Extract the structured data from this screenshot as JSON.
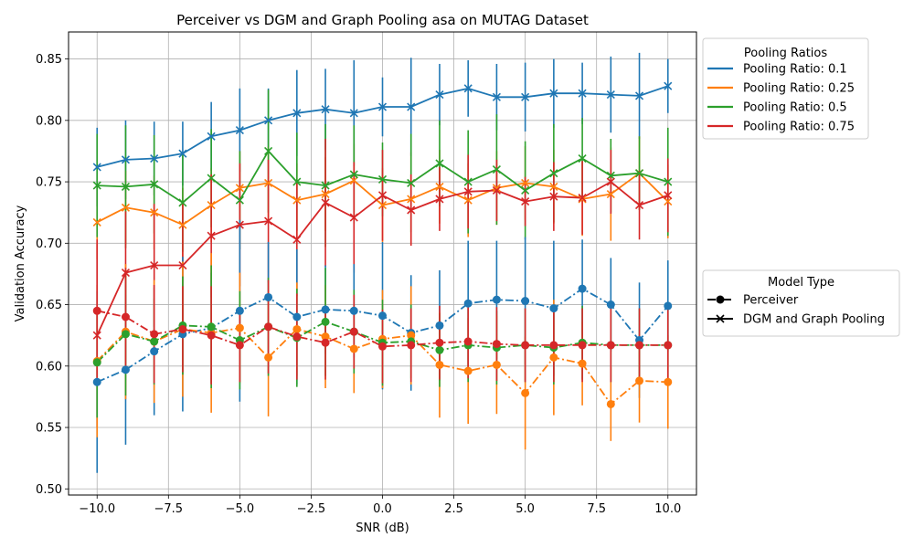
{
  "chart_data": {
    "type": "line",
    "title": "Perceiver vs DGM and Graph Pooling asa on MUTAG Dataset",
    "xlabel": "SNR (dB)",
    "ylabel": "Validation Accuracy",
    "xlim": [
      -11,
      11
    ],
    "ylim": [
      0.495,
      0.872
    ],
    "xticks": [
      -10.0,
      -7.5,
      -5.0,
      -2.5,
      0.0,
      2.5,
      5.0,
      7.5,
      10.0
    ],
    "xtick_labels": [
      "−10.0",
      "−7.5",
      "−5.0",
      "−2.5",
      "0.0",
      "2.5",
      "5.0",
      "7.5",
      "10.0"
    ],
    "yticks": [
      0.5,
      0.55,
      0.6,
      0.65,
      0.7,
      0.75,
      0.8,
      0.85
    ],
    "ytick_labels": [
      "0.50",
      "0.55",
      "0.60",
      "0.65",
      "0.70",
      "0.75",
      "0.80",
      "0.85"
    ],
    "grid": true,
    "x": [
      -10,
      -9,
      -8,
      -7,
      -6,
      -5,
      -4,
      -3,
      -2,
      -1,
      0,
      1,
      2,
      3,
      4,
      5,
      6,
      7,
      8,
      9,
      10
    ],
    "legend_pooling": {
      "title": "Pooling Ratios",
      "placement": "outside-upper-right",
      "entries": [
        "Pooling Ratio: 0.1",
        "Pooling Ratio: 0.25",
        "Pooling Ratio: 0.5",
        "Pooling Ratio: 0.75"
      ],
      "colors": [
        "#1f77b4",
        "#ff7f0e",
        "#2ca02c",
        "#d62728"
      ]
    },
    "legend_model": {
      "title": "Model Type",
      "placement": "outside-right",
      "entries": [
        "Perceiver",
        "DGM and Graph Pooling"
      ],
      "markers": [
        "circle",
        "x"
      ],
      "linestyles": [
        "dashdot",
        "solid"
      ]
    },
    "series": [
      {
        "name": "Pooling Ratio: 0.1",
        "model": "DGM and Graph Pooling",
        "color": "#1f77b4",
        "marker": "x",
        "linestyle": "solid",
        "values": [
          0.762,
          0.768,
          0.769,
          0.773,
          0.787,
          0.792,
          0.8,
          0.806,
          0.809,
          0.806,
          0.811,
          0.811,
          0.821,
          0.826,
          0.819,
          0.819,
          0.822,
          0.822,
          0.821,
          0.82,
          0.828
        ],
        "err": [
          0.032,
          0.032,
          0.03,
          0.026,
          0.028,
          0.034,
          0.026,
          0.035,
          0.033,
          0.043,
          0.024,
          0.04,
          0.025,
          0.023,
          0.027,
          0.028,
          0.028,
          0.025,
          0.031,
          0.035,
          0.022
        ]
      },
      {
        "name": "Pooling Ratio: 0.25",
        "model": "DGM and Graph Pooling",
        "color": "#ff7f0e",
        "marker": "x",
        "linestyle": "solid",
        "values": [
          0.717,
          0.729,
          0.725,
          0.715,
          0.731,
          0.745,
          0.749,
          0.735,
          0.74,
          0.751,
          0.731,
          0.736,
          0.746,
          0.735,
          0.745,
          0.749,
          0.746,
          0.736,
          0.74,
          0.757,
          0.734
        ],
        "err": [
          0.03,
          0.03,
          0.03,
          0.03,
          0.03,
          0.03,
          0.03,
          0.03,
          0.03,
          0.03,
          0.03,
          0.038,
          0.03,
          0.03,
          0.03,
          0.03,
          0.03,
          0.03,
          0.038,
          0.03,
          0.03
        ]
      },
      {
        "name": "Pooling Ratio: 0.5",
        "model": "DGM and Graph Pooling",
        "color": "#2ca02c",
        "marker": "x",
        "linestyle": "solid",
        "values": [
          0.747,
          0.746,
          0.748,
          0.733,
          0.753,
          0.735,
          0.775,
          0.75,
          0.747,
          0.756,
          0.752,
          0.749,
          0.765,
          0.75,
          0.76,
          0.743,
          0.757,
          0.769,
          0.755,
          0.757,
          0.75
        ],
        "err": [
          0.042,
          0.05,
          0.04,
          0.04,
          0.04,
          0.04,
          0.05,
          0.04,
          0.05,
          0.04,
          0.03,
          0.04,
          0.035,
          0.042,
          0.045,
          0.04,
          0.04,
          0.033,
          0.03,
          0.03,
          0.044
        ]
      },
      {
        "name": "Pooling Ratio: 0.75",
        "model": "DGM and Graph Pooling",
        "color": "#d62728",
        "marker": "x",
        "linestyle": "solid",
        "values": [
          0.625,
          0.676,
          0.682,
          0.682,
          0.706,
          0.715,
          0.718,
          0.703,
          0.733,
          0.721,
          0.739,
          0.727,
          0.736,
          0.742,
          0.743,
          0.734,
          0.738,
          0.737,
          0.75,
          0.731,
          0.739
        ],
        "err": [
          0.075,
          0.05,
          0.05,
          0.05,
          0.05,
          0.05,
          0.05,
          0.046,
          0.052,
          0.045,
          0.037,
          0.029,
          0.026,
          0.03,
          0.025,
          0.02,
          0.028,
          0.03,
          0.026,
          0.028,
          0.03
        ]
      },
      {
        "name": "Pooling Ratio: 0.1",
        "model": "Perceiver",
        "color": "#1f77b4",
        "marker": "circle",
        "linestyle": "dashdot",
        "values": [
          0.587,
          0.597,
          0.612,
          0.626,
          0.631,
          0.645,
          0.656,
          0.64,
          0.646,
          0.645,
          0.641,
          0.627,
          0.633,
          0.651,
          0.654,
          0.653,
          0.647,
          0.663,
          0.65,
          0.621,
          0.649
        ],
        "err": [
          0.074,
          0.061,
          0.052,
          0.063,
          0.045,
          0.074,
          0.045,
          0.055,
          0.036,
          0.038,
          0.06,
          0.047,
          0.045,
          0.051,
          0.048,
          0.052,
          0.055,
          0.04,
          0.038,
          0.047,
          0.037
        ]
      },
      {
        "name": "Pooling Ratio: 0.25",
        "model": "Perceiver",
        "color": "#ff7f0e",
        "marker": "circle",
        "linestyle": "dashdot",
        "values": [
          0.604,
          0.628,
          0.62,
          0.63,
          0.627,
          0.631,
          0.607,
          0.63,
          0.624,
          0.614,
          0.622,
          0.625,
          0.601,
          0.596,
          0.601,
          0.578,
          0.607,
          0.602,
          0.569,
          0.588,
          0.587
        ],
        "err": [
          0.062,
          0.055,
          0.05,
          0.055,
          0.065,
          0.045,
          0.048,
          0.038,
          0.042,
          0.036,
          0.04,
          0.04,
          0.043,
          0.043,
          0.04,
          0.046,
          0.047,
          0.034,
          0.03,
          0.034,
          0.038
        ]
      },
      {
        "name": "Pooling Ratio: 0.5",
        "model": "Perceiver",
        "color": "#2ca02c",
        "marker": "circle",
        "linestyle": "dashdot",
        "values": [
          0.603,
          0.626,
          0.62,
          0.633,
          0.632,
          0.621,
          0.632,
          0.623,
          0.636,
          0.628,
          0.619,
          0.62,
          0.613,
          0.617,
          0.615,
          0.617,
          0.615,
          0.619,
          0.617,
          0.617,
          0.617
        ],
        "err": [
          0.045,
          0.05,
          0.035,
          0.04,
          0.05,
          0.04,
          0.04,
          0.04,
          0.044,
          0.034,
          0.035,
          0.03,
          0.03,
          0.03,
          0.03,
          0.03,
          0.03,
          0.03,
          0.03,
          0.03,
          0.03
        ]
      },
      {
        "name": "Pooling Ratio: 0.75",
        "model": "Perceiver",
        "color": "#d62728",
        "marker": "circle",
        "linestyle": "dashdot",
        "values": [
          0.645,
          0.64,
          0.626,
          0.63,
          0.625,
          0.617,
          0.632,
          0.624,
          0.619,
          0.628,
          0.616,
          0.617,
          0.619,
          0.62,
          0.618,
          0.617,
          0.617,
          0.617,
          0.617,
          0.617,
          0.617
        ],
        "err": [
          0.058,
          0.04,
          0.04,
          0.035,
          0.04,
          0.03,
          0.038,
          0.035,
          0.03,
          0.03,
          0.03,
          0.03,
          0.03,
          0.03,
          0.03,
          0.03,
          0.03,
          0.03,
          0.03,
          0.03,
          0.03
        ]
      }
    ]
  }
}
